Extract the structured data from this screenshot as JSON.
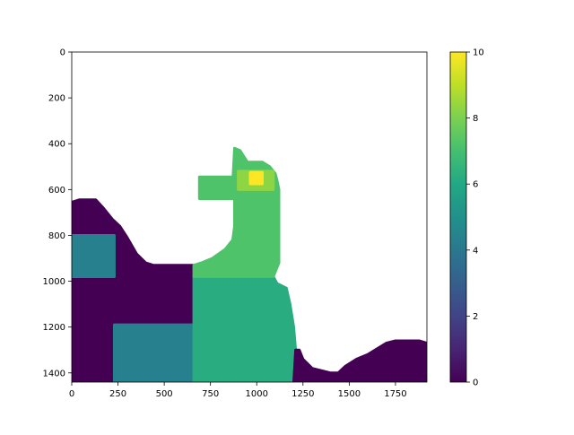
{
  "chart_data": {
    "type": "heatmap",
    "x_ticks": [
      0,
      250,
      500,
      750,
      1000,
      1250,
      1500,
      1750
    ],
    "y_ticks": [
      0,
      200,
      400,
      600,
      800,
      1000,
      1200,
      1400
    ],
    "xlim": [
      0,
      1920
    ],
    "ylim": [
      1440,
      0
    ],
    "y_inverted": true,
    "colorbar": {
      "ticks": [
        0,
        2,
        4,
        6,
        8,
        10
      ],
      "range": [
        0,
        10
      ],
      "colormap": "viridis"
    },
    "regions": [
      {
        "label": "background",
        "value": 0,
        "shape": "polygon",
        "points": [
          [
            0,
            655
          ],
          [
            40,
            645
          ],
          [
            130,
            645
          ],
          [
            170,
            680
          ],
          [
            220,
            730
          ],
          [
            260,
            760
          ],
          [
            300,
            810
          ],
          [
            350,
            880
          ],
          [
            400,
            920
          ],
          [
            440,
            930
          ],
          [
            660,
            930
          ],
          [
            660,
            1440
          ],
          [
            0,
            1440
          ]
        ]
      },
      {
        "label": "box-left",
        "value": 4.3,
        "shape": "rect",
        "x": [
          0,
          230
        ],
        "y": [
          800,
          980
        ]
      },
      {
        "label": "box-bottom",
        "value": 4.3,
        "shape": "rect",
        "x": [
          230,
          660
        ],
        "y": [
          1190,
          1440
        ]
      },
      {
        "label": "tower-body",
        "value": 6.2,
        "shape": "polygon",
        "points": [
          [
            660,
            980
          ],
          [
            1090,
            980
          ],
          [
            1110,
            1010
          ],
          [
            1160,
            1030
          ],
          [
            1180,
            1100
          ],
          [
            1200,
            1200
          ],
          [
            1210,
            1300
          ],
          [
            1200,
            1440
          ],
          [
            660,
            1440
          ]
        ]
      },
      {
        "label": "arm",
        "value": 7.2,
        "shape": "polygon",
        "points": [
          [
            660,
            930
          ],
          [
            700,
            920
          ],
          [
            760,
            900
          ],
          [
            830,
            860
          ],
          [
            870,
            820
          ],
          [
            880,
            760
          ],
          [
            880,
            640
          ],
          [
            870,
            570
          ],
          [
            880,
            420
          ],
          [
            910,
            430
          ],
          [
            950,
            480
          ],
          [
            1030,
            480
          ],
          [
            1070,
            500
          ],
          [
            1100,
            530
          ],
          [
            1110,
            560
          ],
          [
            1120,
            600
          ],
          [
            1120,
            700
          ],
          [
            1120,
            800
          ],
          [
            1120,
            920
          ],
          [
            1090,
            980
          ],
          [
            660,
            980
          ]
        ]
      },
      {
        "label": "arm-left",
        "value": 7.2,
        "shape": "rect",
        "x": [
          690,
          880
        ],
        "y": [
          545,
          640
        ]
      },
      {
        "label": "light-block",
        "value": 8.3,
        "shape": "rect",
        "x": [
          900,
          1090
        ],
        "y": [
          520,
          600
        ]
      },
      {
        "label": "peak",
        "value": 10,
        "shape": "rect",
        "x": [
          965,
          1030
        ],
        "y": [
          525,
          575
        ]
      },
      {
        "label": "right-hill",
        "value": 0,
        "shape": "polygon",
        "points": [
          [
            1210,
            1300
          ],
          [
            1230,
            1300
          ],
          [
            1250,
            1340
          ],
          [
            1300,
            1380
          ],
          [
            1400,
            1400
          ],
          [
            1440,
            1400
          ],
          [
            1480,
            1370
          ],
          [
            1540,
            1340
          ],
          [
            1600,
            1320
          ],
          [
            1660,
            1290
          ],
          [
            1700,
            1270
          ],
          [
            1750,
            1260
          ],
          [
            1830,
            1260
          ],
          [
            1880,
            1260
          ],
          [
            1920,
            1270
          ],
          [
            1920,
            1440
          ],
          [
            1200,
            1440
          ]
        ]
      }
    ]
  }
}
